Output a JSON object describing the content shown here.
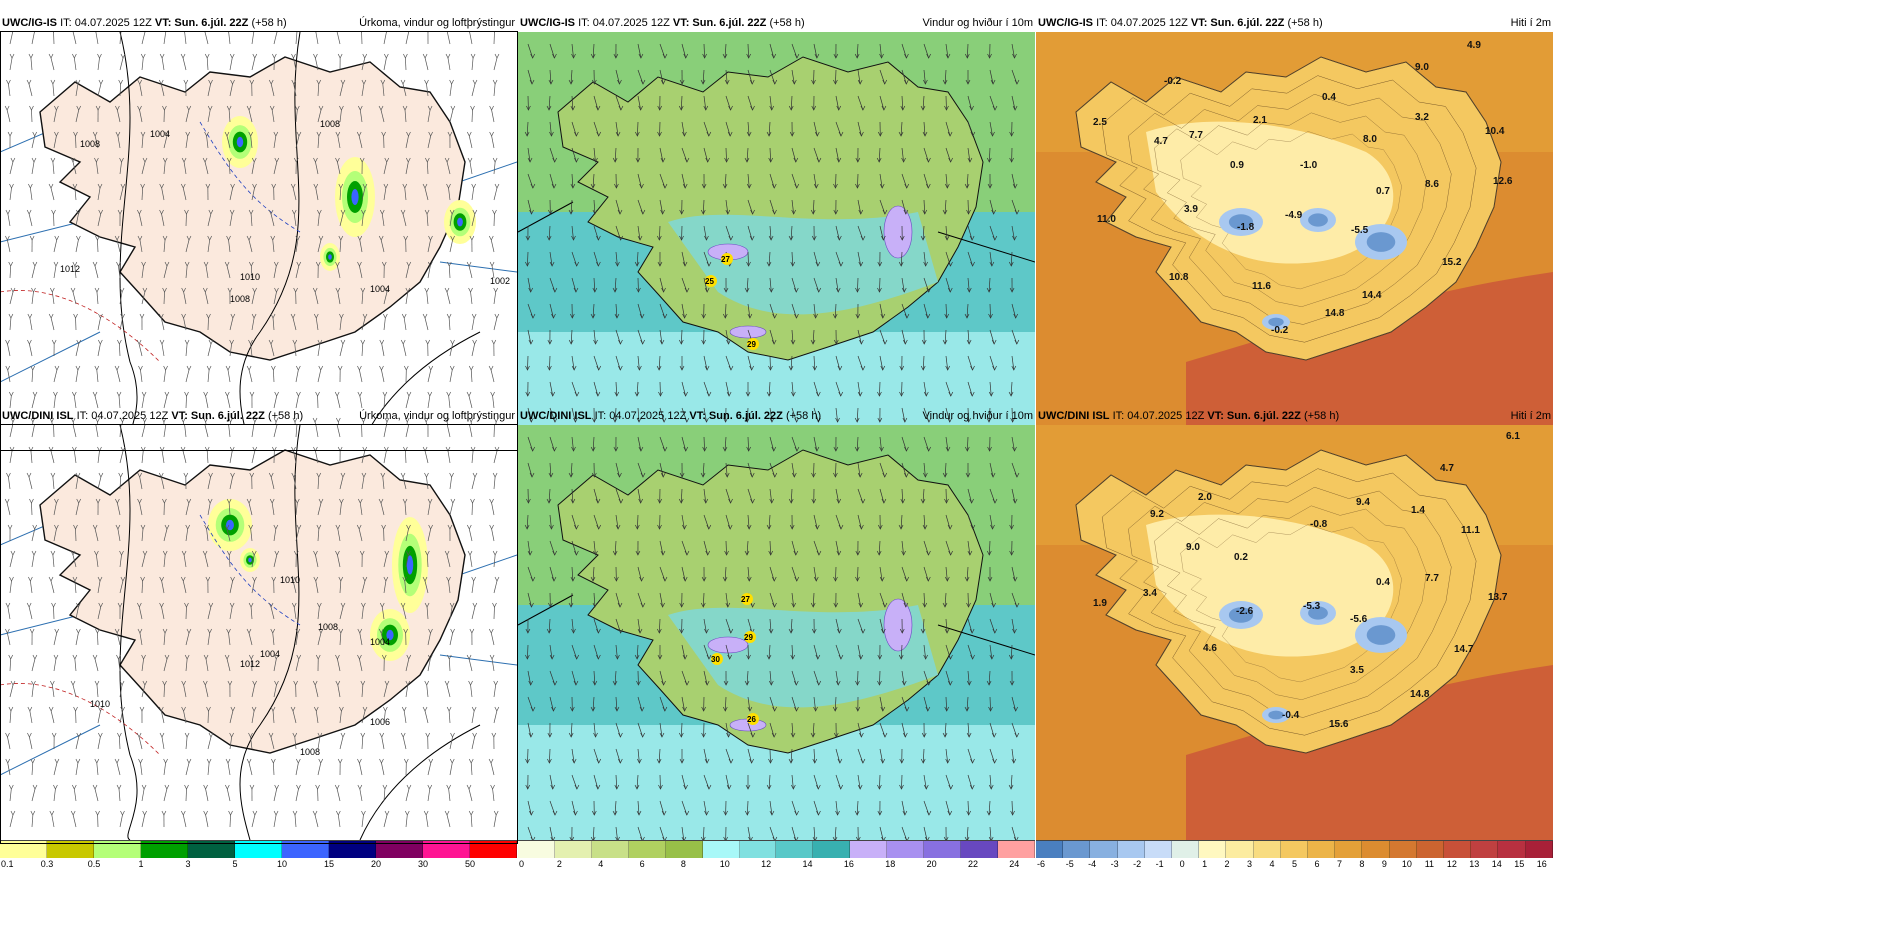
{
  "rows": [
    {
      "model": "UWC/IG-IS",
      "it": "IT: 04.07.2025 12Z",
      "vt_label": "VT:",
      "vt": "Sun. 6.júl. 22Z",
      "lead": "(+58 h)"
    },
    {
      "model": "UWC/DINI ISL",
      "it": "IT: 04.07.2025 12Z",
      "vt_label": "VT:",
      "vt": "Sun. 6.júl. 22Z",
      "lead": "(+58 h)"
    }
  ],
  "panels": {
    "precip": {
      "title": "Úrkoma, vindur og loftþrýstingur",
      "colorbar": {
        "colors": [
          "#ffff99",
          "#c8c800",
          "#b4ff78",
          "#00a000",
          "#006040",
          "#00ffff",
          "#3c64ff",
          "#000080",
          "#800060",
          "#ff1493",
          "#ff0000"
        ],
        "ticks": [
          "0.1",
          "0.3",
          "0.5",
          "1",
          "3",
          "5",
          "10",
          "15",
          "20",
          "30",
          "50"
        ]
      },
      "isobar_labels": [
        [
          "1008",
          "1004",
          "1008",
          "1012",
          "1010",
          "1004",
          "1008",
          "1002"
        ],
        [
          "1010",
          "1008",
          "1004",
          "1010",
          "1012",
          "1004",
          "1006",
          "1008"
        ]
      ]
    },
    "wind": {
      "title": "Vindur og hviður í 10m",
      "colorbar": {
        "colors": [
          "#f8fce0",
          "#e4f0b0",
          "#c8e088",
          "#b0d060",
          "#98c048",
          "#a8f8f8",
          "#80e0e0",
          "#58c8c8",
          "#38b0b0",
          "#c8b0f8",
          "#a890f0",
          "#8870e0",
          "#6848c0",
          "#ffa0a0"
        ],
        "ticks": [
          "0",
          "2",
          "4",
          "6",
          "8",
          "10",
          "12",
          "14",
          "16",
          "18",
          "20",
          "22",
          "24"
        ]
      },
      "gust_labels": [
        [
          "27",
          "25",
          "29"
        ],
        [
          "27",
          "29",
          "30",
          "26"
        ]
      ]
    },
    "temp": {
      "title": "Hiti í 2m",
      "colorbar": {
        "colors": [
          "#4a7fc0",
          "#6a98d0",
          "#88b0e0",
          "#a8c8f0",
          "#c8dcf8",
          "#e0f0e8",
          "#fff8c0",
          "#fcecA0",
          "#f8dc80",
          "#f4c860",
          "#ecb448",
          "#e4a038",
          "#dc8c30",
          "#d47830",
          "#cc6430",
          "#c85038",
          "#c04040",
          "#b83040",
          "#a82038"
        ],
        "ticks": [
          "-6",
          "-5",
          "-4",
          "-3",
          "-2",
          "-1",
          "0",
          "1",
          "2",
          "3",
          "4",
          "5",
          "6",
          "7",
          "8",
          "9",
          "10",
          "11",
          "12",
          "13",
          "14",
          "15",
          "16"
        ]
      },
      "values": [
        [
          "4.9",
          "9.0",
          "-0.2",
          "0.4",
          "2.5",
          "7.7",
          "2.1",
          "3.2",
          "10.4",
          "4.7",
          "8.0",
          "0.9",
          "-1.0",
          "12.6",
          "0.7",
          "8.6",
          "11.0",
          "3.9",
          "-1.8",
          "-4.9",
          "-5.5",
          "15.2",
          "10.8",
          "11.6",
          "14.4",
          "14.8",
          "-0.2"
        ],
        [
          "6.1",
          "4.7",
          "2.0",
          "9.4",
          "9.2",
          "-0.8",
          "1.4",
          "11.1",
          "9.0",
          "0.2",
          "7.7",
          "0.4",
          "13.7",
          "1.9",
          "3.4",
          "-2.6",
          "-5.3",
          "-5.6",
          "4.6",
          "14.7",
          "3.5",
          "14.8",
          "-0.4",
          "15.6"
        ]
      ]
    }
  }
}
